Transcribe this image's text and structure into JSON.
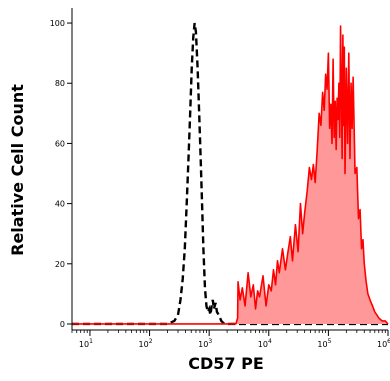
{
  "chart_data": {
    "type": "area",
    "title": "",
    "xlabel": "CD57 PE",
    "ylabel": "Relative Cell Count",
    "x_scale": "log",
    "xlim": [
      5,
      1000000
    ],
    "ylim": [
      -2,
      105
    ],
    "grid": false,
    "legend": "none",
    "x_ticks": [
      {
        "base": "10",
        "exp": "1",
        "value": 10
      },
      {
        "base": "10",
        "exp": "2",
        "value": 100
      },
      {
        "base": "10",
        "exp": "3",
        "value": 1000
      },
      {
        "base": "10",
        "exp": "4",
        "value": 10000
      },
      {
        "base": "10",
        "exp": "5",
        "value": 100000
      },
      {
        "base": "10",
        "exp": "6",
        "value": 1000000
      }
    ],
    "y_ticks": [
      "0",
      "20",
      "40",
      "60",
      "80",
      "100"
    ],
    "series": [
      {
        "style": "dashed-outline",
        "color": "#000000",
        "x": [
          5,
          100,
          200,
          260,
          300,
          330,
          360,
          390,
          420,
          450,
          480,
          510,
          540,
          570,
          600,
          640,
          680,
          720,
          760,
          800,
          850,
          900,
          950,
          1000,
          1050,
          1100,
          1150,
          1200,
          1280,
          1350,
          1450,
          1600,
          1800,
          1000000
        ],
        "y": [
          0,
          0,
          0,
          1,
          3,
          8,
          15,
          25,
          40,
          55,
          70,
          85,
          95,
          100,
          97,
          85,
          70,
          55,
          40,
          25,
          12,
          6,
          4,
          5,
          3,
          6,
          8,
          5,
          7,
          4,
          3,
          1,
          0,
          0
        ]
      },
      {
        "style": "filled",
        "color": "#ff0000",
        "fill": "#ff9999",
        "x": [
          5,
          2000,
          2500,
          2800,
          3000,
          3050,
          3300,
          3600,
          4000,
          4500,
          5000,
          5500,
          6000,
          6500,
          7000,
          8000,
          9000,
          10000,
          11000,
          12000,
          13000,
          14000,
          15000,
          17000,
          19000,
          21000,
          23000,
          25000,
          28000,
          31000,
          34000,
          37000,
          40000,
          44000,
          48000,
          52000,
          56000,
          60000,
          65000,
          70000,
          75000,
          80000,
          85000,
          90000,
          95000,
          100000,
          105000,
          110000,
          115000,
          120000,
          125000,
          130000,
          135000,
          140000,
          145000,
          150000,
          155000,
          160000,
          165000,
          170000,
          175000,
          180000,
          185000,
          190000,
          200000,
          210000,
          220000,
          230000,
          240000,
          250000,
          260000,
          270000,
          280000,
          300000,
          320000,
          340000,
          360000,
          380000,
          400000,
          430000,
          460000,
          500000,
          550000,
          600000,
          650000,
          700000,
          800000,
          900000,
          1000000
        ],
        "y": [
          0,
          0,
          0,
          0,
          2,
          14,
          8,
          12,
          6,
          17,
          9,
          13,
          5,
          11,
          9,
          16,
          6,
          13,
          11,
          18,
          13,
          21,
          17,
          25,
          18,
          24,
          29,
          21,
          33,
          24,
          40,
          30,
          37,
          44,
          52,
          48,
          53,
          47,
          58,
          70,
          66,
          77,
          71,
          83,
          78,
          90,
          65,
          73,
          60,
          88,
          62,
          74,
          58,
          75,
          68,
          80,
          62,
          99,
          78,
          55,
          96,
          66,
          92,
          50,
          85,
          60,
          90,
          55,
          80,
          65,
          82,
          66,
          50,
          52,
          35,
          38,
          25,
          28,
          20,
          14,
          10,
          8,
          6,
          4,
          3,
          2,
          1,
          1,
          0
        ]
      }
    ]
  }
}
